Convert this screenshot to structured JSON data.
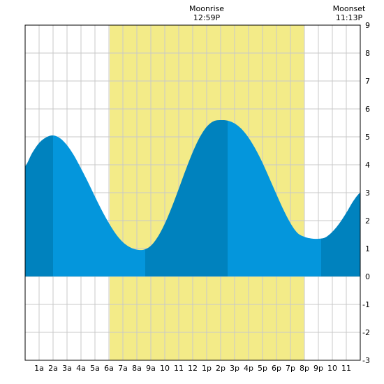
{
  "chart_data": {
    "type": "area",
    "title": "",
    "xlabel": "",
    "ylabel": "",
    "xlim": [
      0,
      24
    ],
    "ylim": [
      -3,
      9
    ],
    "grid": true,
    "x_tick_labels": [
      "1a",
      "2a",
      "3a",
      "4a",
      "5a",
      "6a",
      "7a",
      "8a",
      "9a",
      "10",
      "11",
      "12",
      "1p",
      "2p",
      "3p",
      "4p",
      "5p",
      "6p",
      "7p",
      "8p",
      "9p",
      "10",
      "11"
    ],
    "x_tick_hours": [
      1,
      2,
      3,
      4,
      5,
      6,
      7,
      8,
      9,
      10,
      11,
      12,
      13,
      14,
      15,
      16,
      17,
      18,
      19,
      20,
      21,
      22,
      23
    ],
    "y_ticks": [
      9,
      8,
      7,
      6,
      5,
      4,
      3,
      2,
      1,
      0,
      -1,
      -2,
      -3
    ],
    "daylight_span_hours": [
      6.05,
      19.97
    ],
    "extremes": [
      {
        "type": "high",
        "time_hours": 2.0,
        "height": 5.05
      },
      {
        "type": "low",
        "time_hours": 8.6,
        "height": 0.95
      },
      {
        "type": "high",
        "time_hours": 14.5,
        "height": 5.6
      },
      {
        "type": "low",
        "time_hours": 21.2,
        "height": 1.35
      }
    ],
    "series": [
      {
        "values_hours": [
          0,
          0.5,
          1,
          1.5,
          2,
          2.5,
          3,
          3.5,
          4,
          4.5,
          5,
          5.5,
          6,
          6.5,
          7,
          7.5,
          8,
          8.5,
          9,
          9.5,
          10,
          10.5,
          11,
          11.5,
          12,
          12.5,
          13,
          13.5,
          14,
          14.5,
          15,
          15.5,
          16,
          16.5,
          17,
          17.5,
          18,
          18.5,
          19,
          19.5,
          20,
          20.5,
          21,
          21.5,
          22,
          22.5,
          23,
          23.5,
          24
        ],
        "values": [
          3.95,
          4.42,
          4.78,
          4.98,
          5.05,
          4.95,
          4.7,
          4.33,
          3.87,
          3.38,
          2.86,
          2.36,
          1.91,
          1.52,
          1.23,
          1.05,
          0.96,
          0.96,
          1.1,
          1.42,
          1.89,
          2.48,
          3.14,
          3.82,
          4.45,
          4.98,
          5.36,
          5.56,
          5.6,
          5.58,
          5.48,
          5.28,
          4.97,
          4.56,
          4.07,
          3.51,
          2.94,
          2.39,
          1.91,
          1.56,
          1.42,
          1.36,
          1.35,
          1.4,
          1.6,
          1.9,
          2.28,
          2.7,
          3.0
        ]
      }
    ],
    "colors": {
      "daylight": "#f3eb88",
      "water_light": "#0496dc",
      "water_dark": "#0082be",
      "grid": "#c8c8c8",
      "background": "#ffffff"
    }
  },
  "annotations": [
    {
      "label": "Moonrise",
      "time": "12:59P",
      "time_hours": 13.0
    },
    {
      "label": "Moonset",
      "time": "11:13P",
      "time_hours": 23.2
    }
  ]
}
